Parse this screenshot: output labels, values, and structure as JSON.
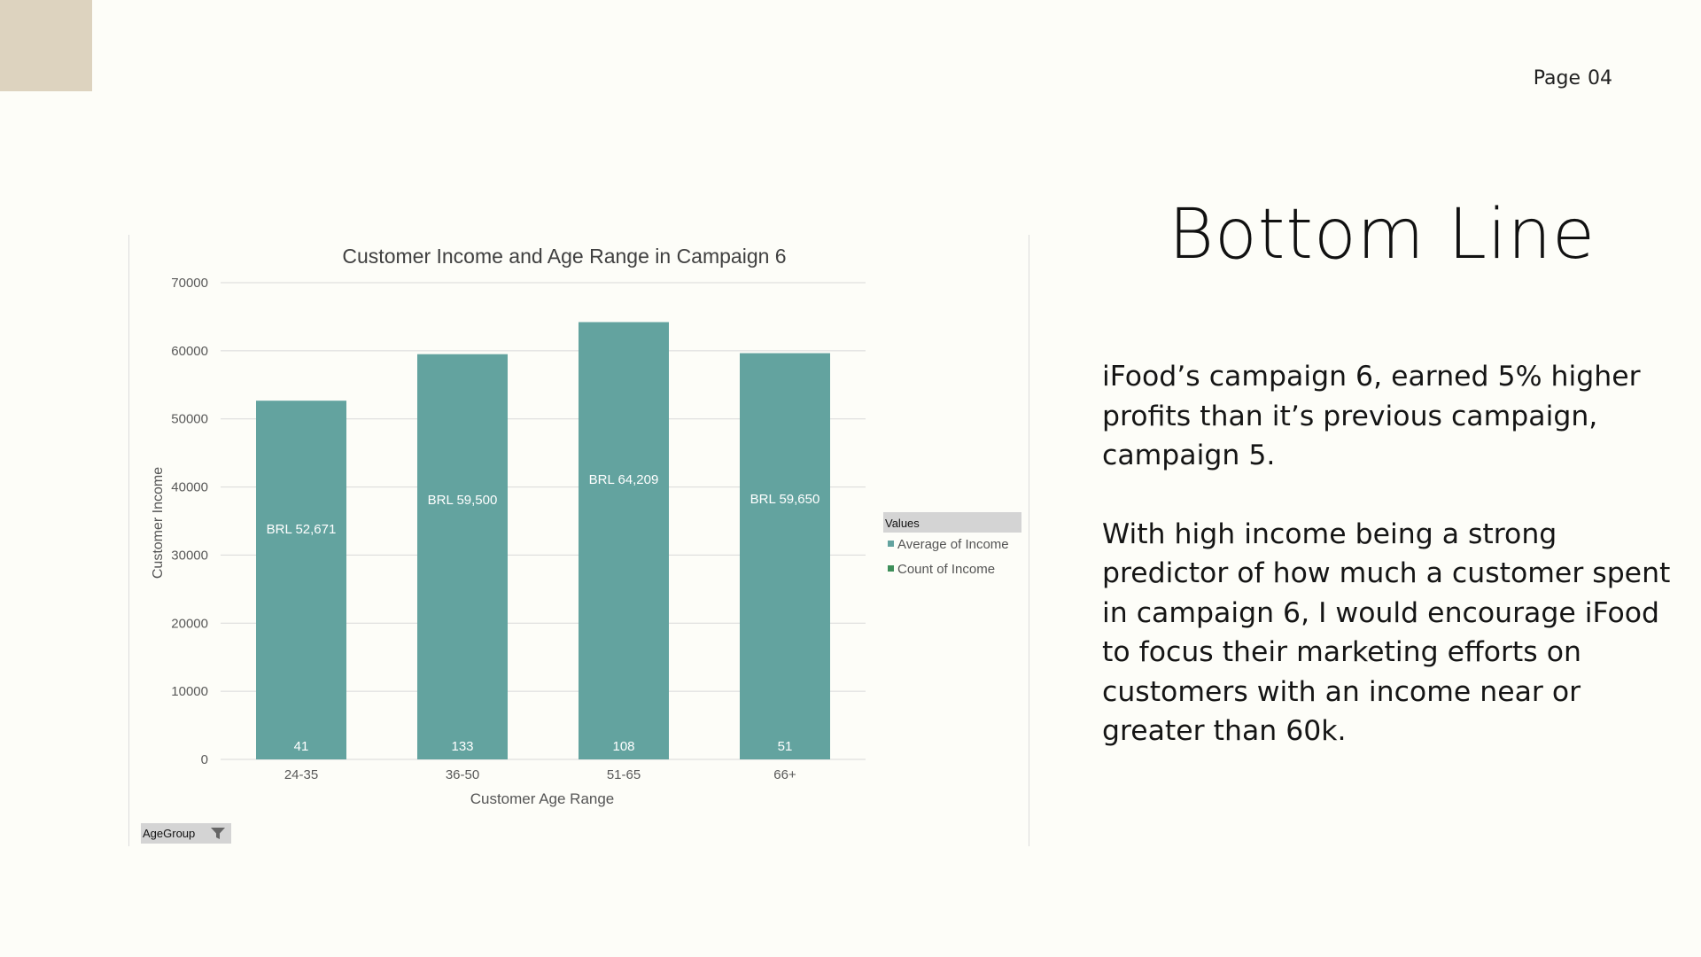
{
  "page": {
    "label": "Page",
    "number": "04"
  },
  "title": "Bottom Line",
  "body": {
    "paragraph1": "iFood’s campaign 6, earned 5% higher profits than it’s previous campaign, campaign 5.",
    "paragraph2": "With high income being a strong predictor of how much a customer spent in campaign 6, I would encourage iFood to focus their marketing efforts on customers with an income near or greater than 60k."
  },
  "filter": {
    "label": "AgeGroup",
    "icon": "funnel-icon"
  },
  "colors": {
    "bar": "#63a39f",
    "count_legend": "#3e8f5a",
    "background": "#fdfdf8",
    "corner": "#ddd3bf"
  },
  "chart_data": {
    "type": "bar",
    "title": "Customer Income and Age Range in Campaign 6",
    "xlabel": "Customer Age Range",
    "ylabel": "Customer Income",
    "categories": [
      "24-35",
      "36-50",
      "51-65",
      "66+"
    ],
    "series": [
      {
        "name": "Average of Income",
        "values": [
          52671,
          59500,
          64209,
          59650
        ],
        "labels": [
          "BRL 52,671",
          "BRL 59,500",
          "BRL 64,209",
          "BRL 59,650"
        ]
      },
      {
        "name": "Count of Income",
        "values": [
          41,
          133,
          108,
          51
        ],
        "labels": [
          "41",
          "133",
          "108",
          "51"
        ]
      }
    ],
    "ylim": [
      0,
      70000
    ],
    "yticks": [
      "0",
      "10000",
      "20000",
      "30000",
      "40000",
      "50000",
      "60000",
      "70000"
    ],
    "grid": true,
    "legend": {
      "title": "Values",
      "placement": "right"
    }
  }
}
